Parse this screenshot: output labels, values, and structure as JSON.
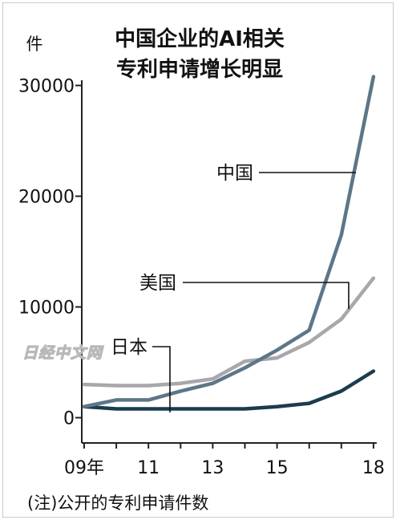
{
  "chart_data": {
    "type": "line",
    "title": [
      "中国企业的AI相关",
      "专利申请增长明显"
    ],
    "unit": "件",
    "x": [
      2009,
      2010,
      2011,
      2012,
      2013,
      2014,
      2015,
      2016,
      2017,
      2018
    ],
    "x_tick_labels": [
      "09年",
      "11",
      "13",
      "15",
      "18"
    ],
    "x_tick_positions": [
      2009,
      2011,
      2013,
      2015,
      2018
    ],
    "y_ticks": [
      0,
      10000,
      20000,
      30000
    ],
    "y_tick_labels": [
      "0",
      "10000",
      "20000",
      "30000"
    ],
    "ylim": [
      -2300,
      33000
    ],
    "series": [
      {
        "name": "中国",
        "values": [
          1000,
          1600,
          1600,
          2400,
          3100,
          4500,
          6100,
          7900,
          16500,
          30800
        ],
        "color": "#5d7688"
      },
      {
        "name": "美国",
        "values": [
          3000,
          2900,
          2900,
          3100,
          3500,
          5100,
          5400,
          6800,
          8900,
          12600
        ],
        "color": "#a7a7ac"
      },
      {
        "name": "日本",
        "values": [
          1000,
          800,
          800,
          800,
          800,
          800,
          1000,
          1300,
          2400,
          4200
        ],
        "color": "#1b3c4f"
      }
    ],
    "note": "(注)公开的专利申请件数",
    "watermark": "日经中文网",
    "grid": false,
    "legend": "inline-callouts"
  }
}
